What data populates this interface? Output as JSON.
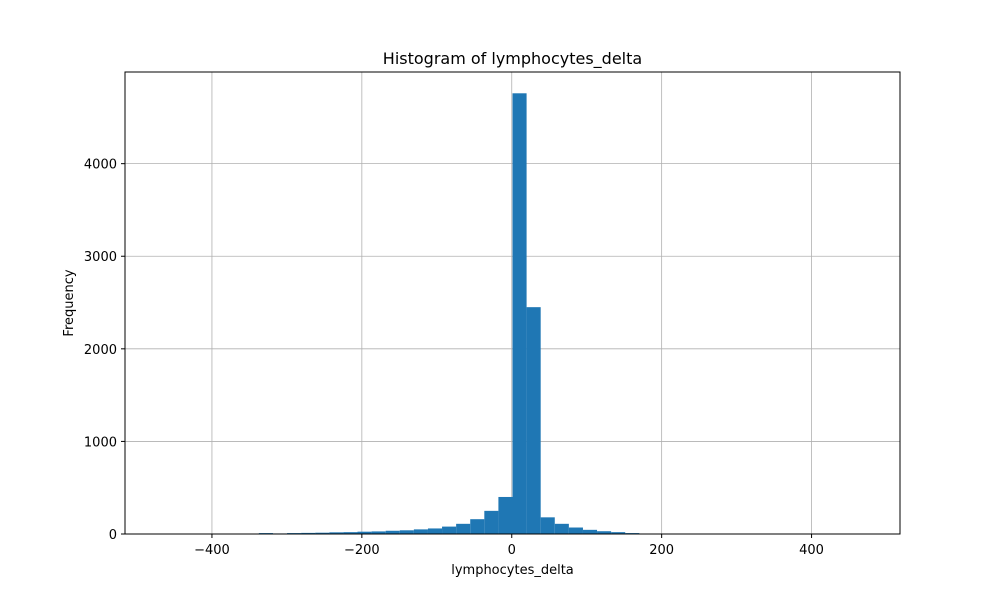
{
  "chart_data": {
    "type": "bar",
    "title": "Histogram of lymphocytes_delta",
    "xlabel": "lymphocytes_delta",
    "ylabel": "Frequency",
    "xlim": [
      -516,
      518
    ],
    "ylim": [
      0,
      4990
    ],
    "xticks": [
      -400,
      -200,
      0,
      200,
      400
    ],
    "xtick_labels": [
      "−400",
      "−200",
      "0",
      "200",
      "400"
    ],
    "yticks": [
      0,
      1000,
      2000,
      3000,
      4000
    ],
    "ytick_labels": [
      "0",
      "1000",
      "2000",
      "3000",
      "4000"
    ],
    "grid": true,
    "bar_color": "#1f77b4",
    "bin_width": 18.8,
    "bin_starts": [
      -469.0,
      -450.2,
      -431.4,
      -412.6,
      -393.8,
      -375.0,
      -356.2,
      -337.4,
      -318.6,
      -299.8,
      -281.0,
      -262.2,
      -243.4,
      -224.6,
      -205.8,
      -187.0,
      -168.2,
      -149.4,
      -130.6,
      -111.8,
      -93.0,
      -74.2,
      -55.4,
      -36.6,
      -17.8,
      1.0,
      19.8,
      38.6,
      57.4,
      76.2,
      95.0,
      113.8,
      132.6,
      151.4,
      170.2,
      189.0,
      207.8,
      226.6,
      245.4,
      264.2,
      283.0,
      301.8,
      320.6,
      339.4,
      358.2,
      377.0,
      395.8,
      414.6,
      433.4,
      452.2
    ],
    "values": [
      1,
      0,
      1,
      1,
      2,
      3,
      5,
      10,
      6,
      10,
      12,
      14,
      18,
      20,
      25,
      28,
      35,
      40,
      50,
      60,
      80,
      110,
      160,
      250,
      400,
      4760,
      2450,
      180,
      110,
      70,
      45,
      30,
      20,
      10,
      5,
      3,
      2,
      1,
      1,
      1,
      0,
      0,
      1,
      0,
      0,
      0,
      0,
      0,
      0,
      1
    ]
  }
}
